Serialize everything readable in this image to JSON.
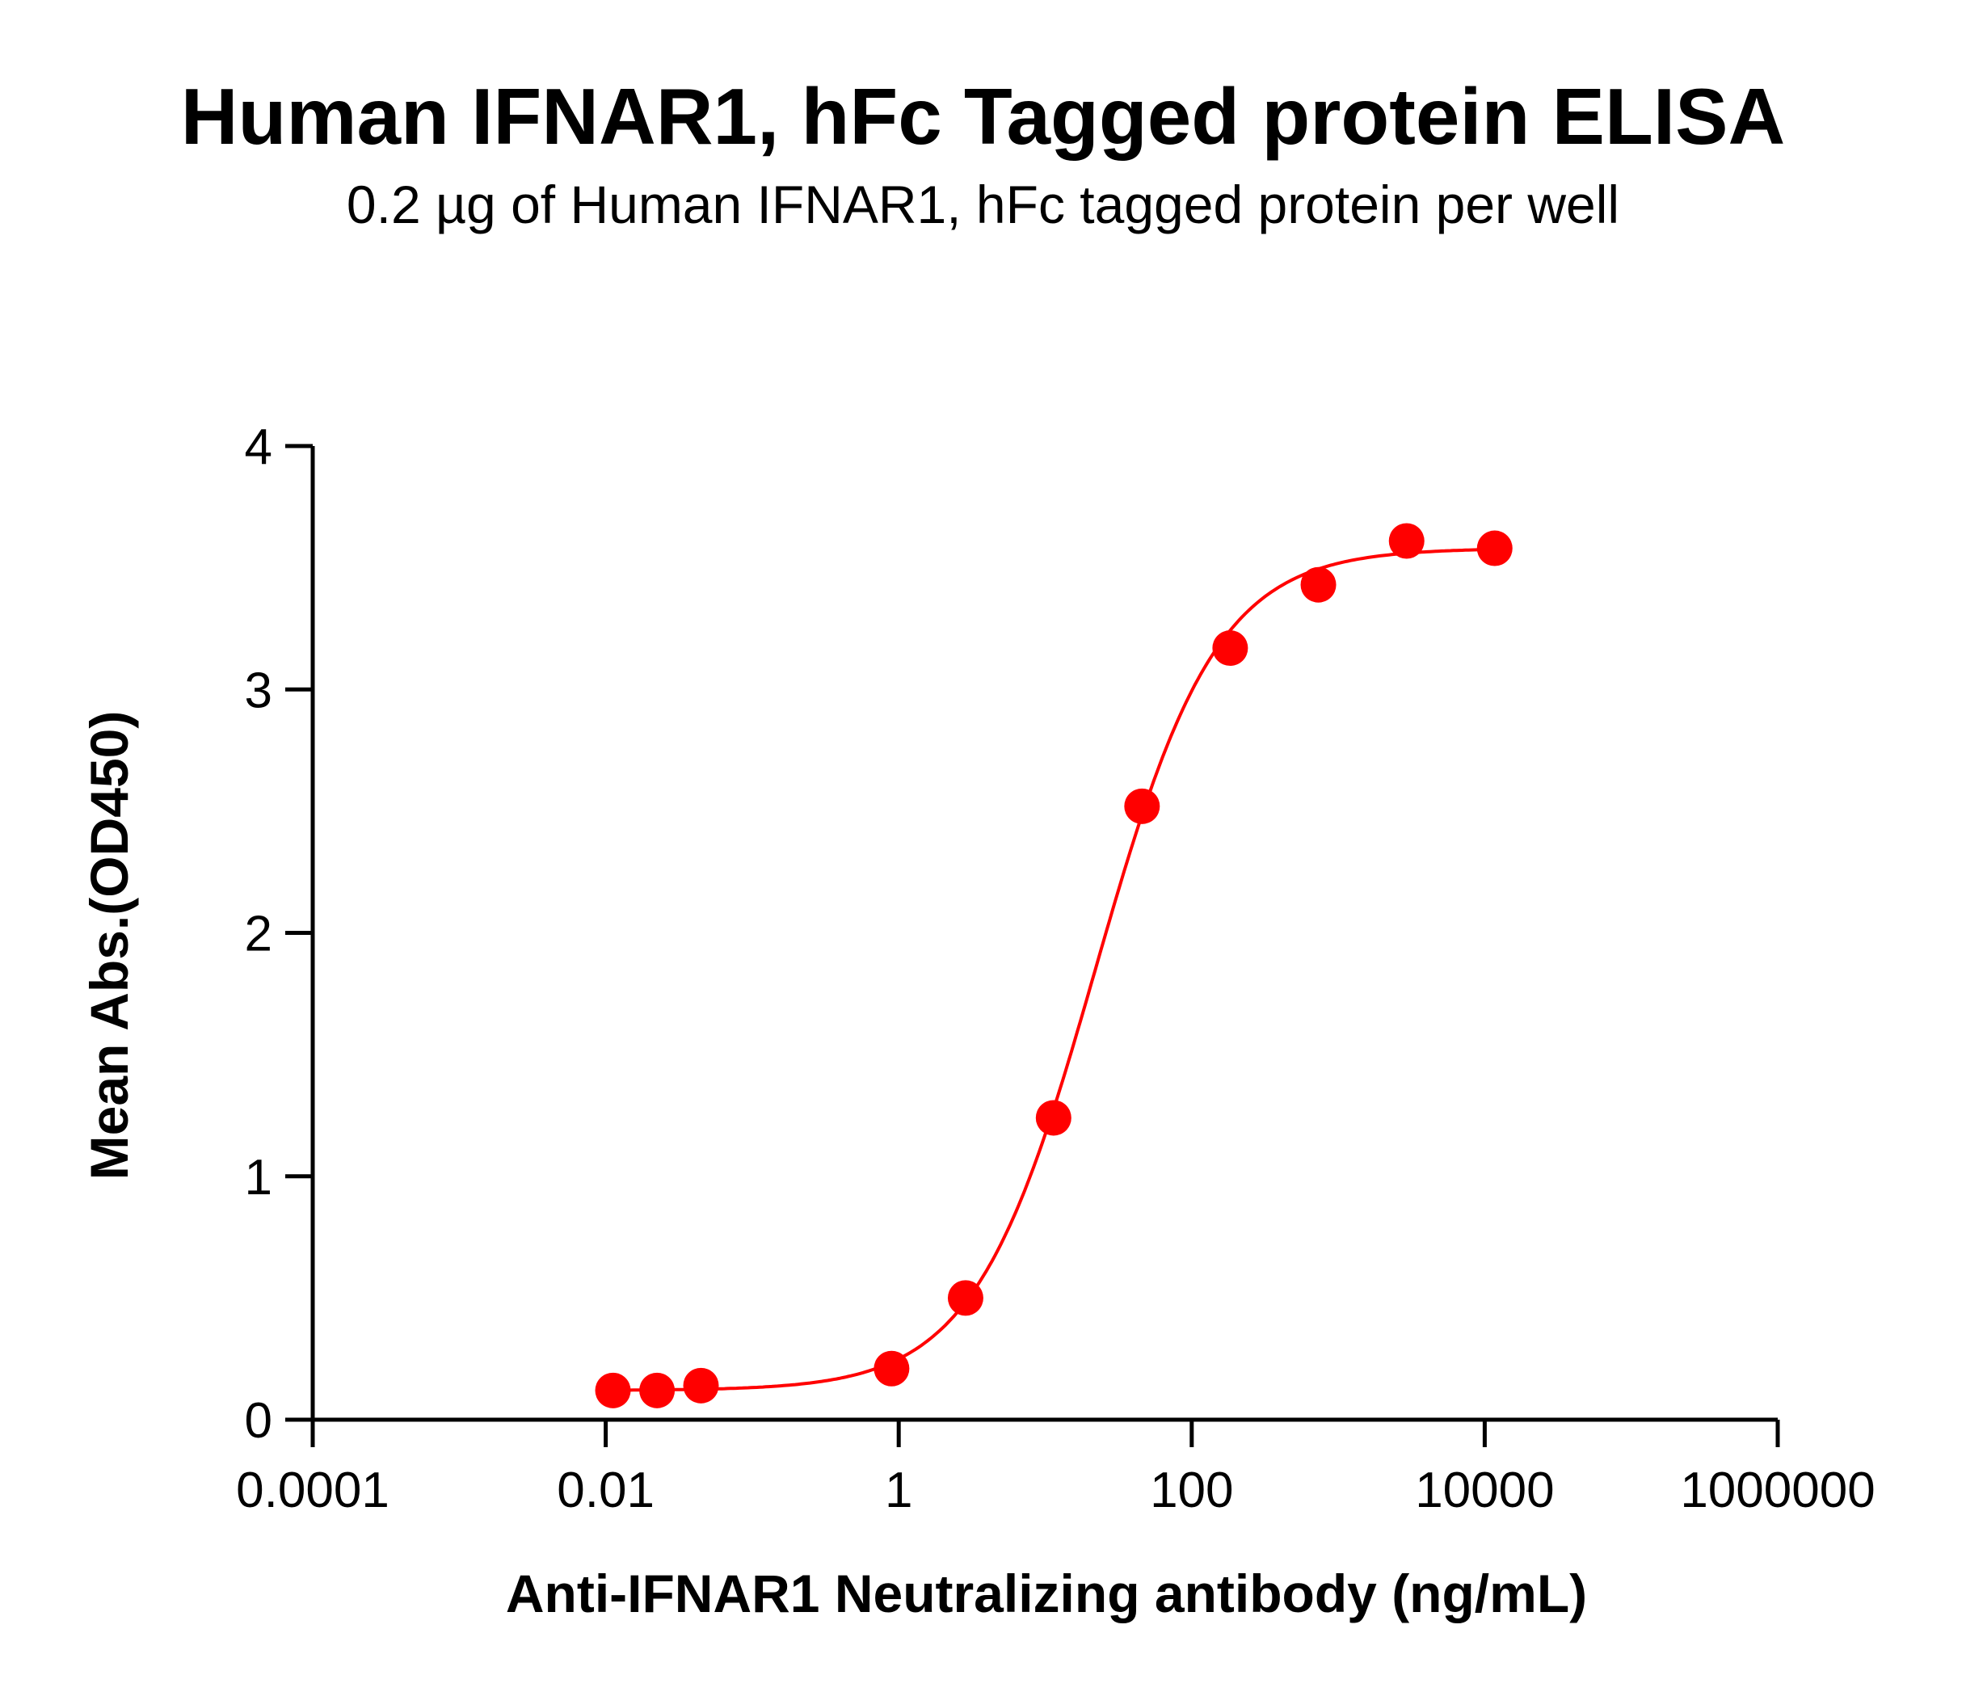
{
  "chart_data": {
    "type": "scatter",
    "title": "Human IFNAR1, hFc Tagged protein ELISA",
    "subtitle": "0.2 µg of Human IFNAR1, hFc tagged protein per well",
    "xlabel": "Anti-IFNAR1 Neutralizing antibody (ng/mL)",
    "ylabel": "Mean Abs.(OD450)",
    "x_scale": "log10",
    "xlim": [
      0.0001,
      1000000
    ],
    "ylim": [
      0,
      4
    ],
    "x_ticks": [
      0.0001,
      0.01,
      1,
      100,
      10000,
      1000000
    ],
    "x_tick_labels": [
      "0.0001",
      "0.01",
      "1",
      "100",
      "10000",
      "1000000"
    ],
    "y_ticks": [
      0,
      1,
      2,
      3,
      4
    ],
    "y_tick_labels": [
      "0",
      "1",
      "2",
      "3",
      "4"
    ],
    "grid": false,
    "color": "#ff0000",
    "series": [
      {
        "x": [
          0.0112,
          0.0224,
          0.0447,
          0.894,
          2.86,
          11.4,
          45.8,
          183,
          732,
          2930,
          11700
        ],
        "y": [
          0.12,
          0.12,
          0.14,
          0.21,
          0.5,
          1.24,
          2.52,
          3.17,
          3.43,
          3.61,
          3.58
        ]
      }
    ],
    "fit_curve": {
      "model": "4PL",
      "bottom": 0.12,
      "top": 3.58,
      "ec50": 22,
      "hill": 1.05
    }
  }
}
